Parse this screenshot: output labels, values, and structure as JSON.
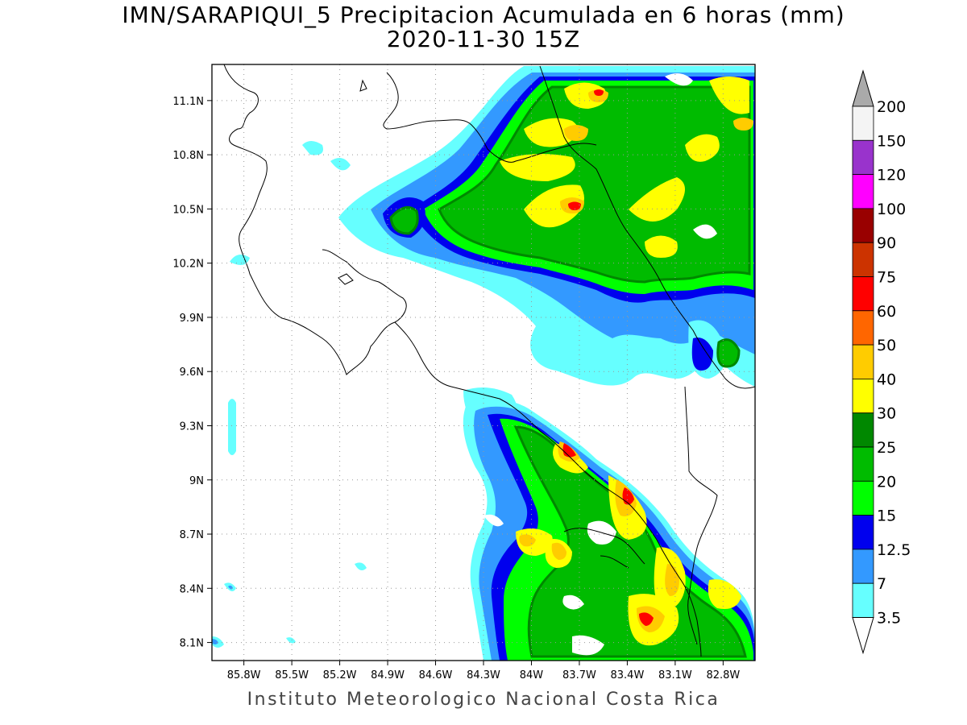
{
  "title": {
    "line1": "IMN/SARAPIQUI_5 Precipitacion Acumulada en 6 horas (mm)",
    "line2": "2020-11-30 15Z"
  },
  "footer": "Instituto Meteorologico Nacional Costa Rica",
  "map": {
    "lon_range": [
      -86.0,
      -82.6
    ],
    "lat_range": [
      8.0,
      11.3
    ],
    "lon_ticks": [
      {
        "value": -85.8,
        "label": "85.8W"
      },
      {
        "value": -85.5,
        "label": "85.5W"
      },
      {
        "value": -85.2,
        "label": "85.2W"
      },
      {
        "value": -84.9,
        "label": "84.9W"
      },
      {
        "value": -84.6,
        "label": "84.6W"
      },
      {
        "value": -84.3,
        "label": "84.3W"
      },
      {
        "value": -84.0,
        "label": "84W"
      },
      {
        "value": -83.7,
        "label": "83.7W"
      },
      {
        "value": -83.4,
        "label": "83.4W"
      },
      {
        "value": -83.1,
        "label": "83.1W"
      },
      {
        "value": -82.8,
        "label": "82.8W"
      }
    ],
    "lat_ticks": [
      {
        "value": 11.1,
        "label": "11.1N"
      },
      {
        "value": 10.8,
        "label": "10.8N"
      },
      {
        "value": 10.5,
        "label": "10.5N"
      },
      {
        "value": 10.2,
        "label": "10.2N"
      },
      {
        "value": 9.9,
        "label": "9.9N"
      },
      {
        "value": 9.6,
        "label": "9.6N"
      },
      {
        "value": 9.3,
        "label": "9.3N"
      },
      {
        "value": 9.0,
        "label": "9N"
      },
      {
        "value": 8.7,
        "label": "8.7N"
      },
      {
        "value": 8.4,
        "label": "8.4N"
      },
      {
        "value": 8.1,
        "label": "8.1N"
      }
    ]
  },
  "colorbar": {
    "levels": [
      {
        "label": "200",
        "color": "#f4f4f4"
      },
      {
        "label": "150",
        "color": "#9933cc"
      },
      {
        "label": "120",
        "color": "#ff00ff"
      },
      {
        "label": "100",
        "color": "#990000"
      },
      {
        "label": "90",
        "color": "#cc3300"
      },
      {
        "label": "75",
        "color": "#ff0000"
      },
      {
        "label": "60",
        "color": "#ff6600"
      },
      {
        "label": "50",
        "color": "#ffcc00"
      },
      {
        "label": "40",
        "color": "#ffff00"
      },
      {
        "label": "30",
        "color": "#008800"
      },
      {
        "label": "25",
        "color": "#00bb00"
      },
      {
        "label": "20",
        "color": "#00ff00"
      },
      {
        "label": "15",
        "color": "#0000ee"
      },
      {
        "label": "12.5",
        "color": "#3399ff"
      },
      {
        "label": "7",
        "color": "#66ffff"
      },
      {
        "label": "3.5",
        "color": ""
      }
    ],
    "top_arrow_color": "#aaaaaa",
    "bottom_arrow_color": "#ffffff"
  },
  "colors": {
    "c3_5": "#66ffff",
    "c7": "#3399ff",
    "c12_5": "#0000ee",
    "c15": "#00ff00",
    "c20": "#00bb00",
    "c25": "#008800",
    "c30": "#ffff00",
    "c40": "#ffcc00",
    "c50": "#ff6600",
    "c60": "#ff0000"
  }
}
